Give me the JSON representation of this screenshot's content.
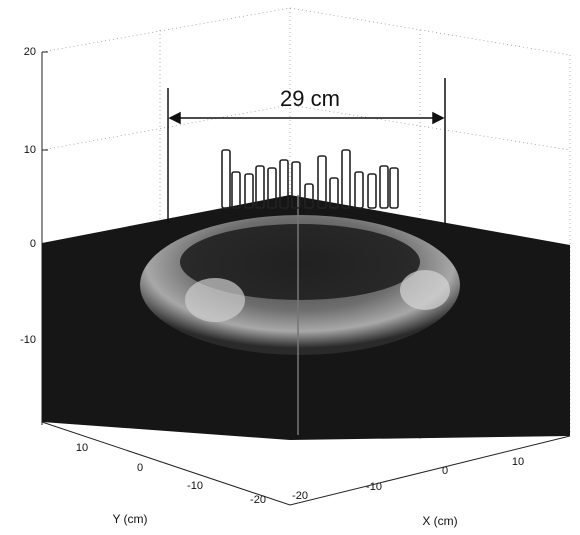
{
  "annotation": "29 cm",
  "z_axis": {
    "ticks": [
      "20",
      "10",
      "0",
      "-10"
    ]
  },
  "y_axis": {
    "label": "Y (cm)",
    "ticks": [
      "10",
      "0",
      "-10",
      "-20"
    ]
  },
  "x_axis": {
    "label": "X (cm)",
    "ticks": [
      "-20",
      "-10",
      "0",
      "10"
    ]
  }
}
